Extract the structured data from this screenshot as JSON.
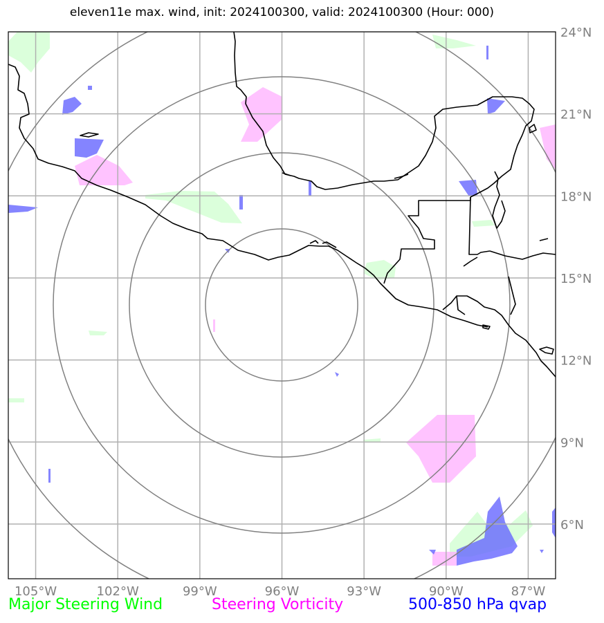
{
  "title": "eleven11e max. wind, init: 2024100300, valid: 2024100300 (Hour: 000)",
  "axes": {
    "lon_labels": [
      "105°W",
      "102°W",
      "99°W",
      "96°W",
      "93°W",
      "90°W",
      "87°W"
    ],
    "lat_labels": [
      "24°N",
      "21°N",
      "18°N",
      "15°N",
      "12°N",
      "9°N",
      "6°N"
    ],
    "grid": true,
    "lon_range": [
      -106,
      -86
    ],
    "lat_range": [
      4,
      24
    ]
  },
  "center": {
    "lon": -96,
    "lat": 14
  },
  "legend": {
    "wind_label": "Major Steering Wind",
    "vort_label": "Steering Vorticity",
    "qvap_label": "500-850 hPa qvap"
  },
  "colors": {
    "wind": "#00ff00",
    "vort": "#ff00ff",
    "qvap": "#0000ff",
    "wind_fill": "#ccffcc",
    "vort_fill": "#ffaaff",
    "qvap_fill": "#6666ff",
    "tick_text": "#808080",
    "rings": "#808080",
    "grid": "#b0b0b0"
  }
}
